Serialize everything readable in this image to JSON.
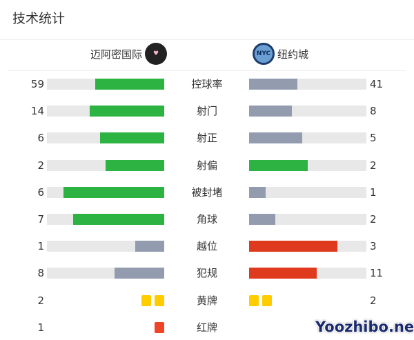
{
  "title": "技术统计",
  "home_team": {
    "name": "迈阿密国际",
    "logo": "inter-miami-crest"
  },
  "away_team": {
    "name": "纽约城",
    "logo": "nycfc-crest"
  },
  "colors": {
    "green": "#2db342",
    "gray": "#939cae",
    "red": "#e03a1e",
    "track": "#e8e8e8",
    "yellow": "#ffcc00",
    "card_red": "#f04427"
  },
  "stats": [
    {
      "label": "控球率",
      "home": "59",
      "away": "41",
      "home_color": "#2db342",
      "away_color": "#939cae"
    },
    {
      "label": "射门",
      "home": "14",
      "away": "8",
      "home_color": "#2db342",
      "away_color": "#939cae"
    },
    {
      "label": "射正",
      "home": "6",
      "away": "5",
      "home_color": "#2db342",
      "away_color": "#939cae"
    },
    {
      "label": "射偏",
      "home": "2",
      "away": "2",
      "home_color": "#2db342",
      "away_color": "#2db342"
    },
    {
      "label": "被封堵",
      "home": "6",
      "away": "1",
      "home_color": "#2db342",
      "away_color": "#939cae"
    },
    {
      "label": "角球",
      "home": "7",
      "away": "2",
      "home_color": "#2db342",
      "away_color": "#939cae"
    },
    {
      "label": "越位",
      "home": "1",
      "away": "3",
      "home_color": "#939cae",
      "away_color": "#e03a1e"
    },
    {
      "label": "犯规",
      "home": "8",
      "away": "11",
      "home_color": "#939cae",
      "away_color": "#e03a1e"
    }
  ],
  "cards": [
    {
      "label": "黄牌",
      "home": "2",
      "away": "2",
      "color": "#ffcc00",
      "home_count": 2,
      "away_count": 2
    },
    {
      "label": "红牌",
      "home": "1",
      "away": "",
      "color": "#f04427",
      "home_count": 1,
      "away_count": 0
    }
  ],
  "watermark": "Yoozhibo.net"
}
